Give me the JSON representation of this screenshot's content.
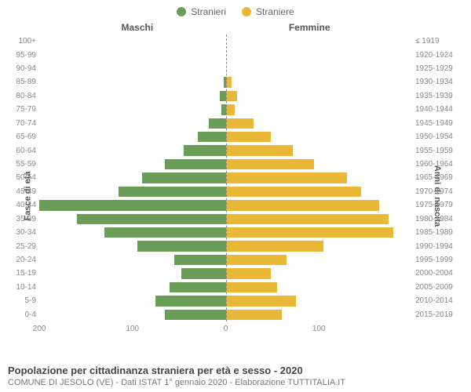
{
  "legend": {
    "male": {
      "label": "Stranieri",
      "color": "#6a9e58"
    },
    "female": {
      "label": "Straniere",
      "color": "#e9b836"
    }
  },
  "headers": {
    "male": "Maschi",
    "female": "Femmine"
  },
  "axes": {
    "left_title": "Fasce di età",
    "right_title": "Anni di nascita",
    "x_max": 200,
    "x_tick_step": 100
  },
  "colors": {
    "male_bar": "#6a9e58",
    "female_bar": "#e9b836",
    "background": "#ffffff",
    "text": "#555555",
    "tick_text": "#888888",
    "center_line": "#888888"
  },
  "typography": {
    "label_fontsize": 10,
    "header_fontsize": 12,
    "title_fontsize": 13,
    "sub_fontsize": 11
  },
  "chart_type": "population-pyramid",
  "rows": [
    {
      "age": "100+",
      "birth": "≤ 1919",
      "m": 0,
      "f": 0
    },
    {
      "age": "95-99",
      "birth": "1920-1924",
      "m": 0,
      "f": 0
    },
    {
      "age": "90-94",
      "birth": "1925-1929",
      "m": 0,
      "f": 0
    },
    {
      "age": "85-89",
      "birth": "1930-1934",
      "m": 2,
      "f": 6
    },
    {
      "age": "80-84",
      "birth": "1935-1939",
      "m": 6,
      "f": 12
    },
    {
      "age": "75-79",
      "birth": "1940-1944",
      "m": 5,
      "f": 10
    },
    {
      "age": "70-74",
      "birth": "1945-1949",
      "m": 18,
      "f": 30
    },
    {
      "age": "65-69",
      "birth": "1950-1954",
      "m": 30,
      "f": 48
    },
    {
      "age": "60-64",
      "birth": "1955-1959",
      "m": 45,
      "f": 72
    },
    {
      "age": "55-59",
      "birth": "1960-1964",
      "m": 65,
      "f": 95
    },
    {
      "age": "50-54",
      "birth": "1965-1969",
      "m": 90,
      "f": 130
    },
    {
      "age": "45-49",
      "birth": "1970-1974",
      "m": 115,
      "f": 145
    },
    {
      "age": "40-44",
      "birth": "1975-1979",
      "m": 200,
      "f": 165
    },
    {
      "age": "35-39",
      "birth": "1980-1984",
      "m": 160,
      "f": 175
    },
    {
      "age": "30-34",
      "birth": "1985-1989",
      "m": 130,
      "f": 180
    },
    {
      "age": "25-29",
      "birth": "1990-1994",
      "m": 95,
      "f": 105
    },
    {
      "age": "20-24",
      "birth": "1995-1999",
      "m": 55,
      "f": 65
    },
    {
      "age": "15-19",
      "birth": "2000-2004",
      "m": 48,
      "f": 48
    },
    {
      "age": "10-14",
      "birth": "2005-2009",
      "m": 60,
      "f": 55
    },
    {
      "age": "5-9",
      "birth": "2010-2014",
      "m": 75,
      "f": 75
    },
    {
      "age": "0-4",
      "birth": "2015-2019",
      "m": 65,
      "f": 60
    }
  ],
  "x_ticks": [
    {
      "pos": 0,
      "label": "200"
    },
    {
      "pos": 25,
      "label": "100"
    },
    {
      "pos": 50,
      "label": "0"
    },
    {
      "pos": 75,
      "label": "100"
    }
  ],
  "footer": {
    "title": "Popolazione per cittadinanza straniera per età e sesso - 2020",
    "sub": "COMUNE DI JESOLO (VE) - Dati ISTAT 1° gennaio 2020 - Elaborazione TUTTITALIA.IT"
  }
}
